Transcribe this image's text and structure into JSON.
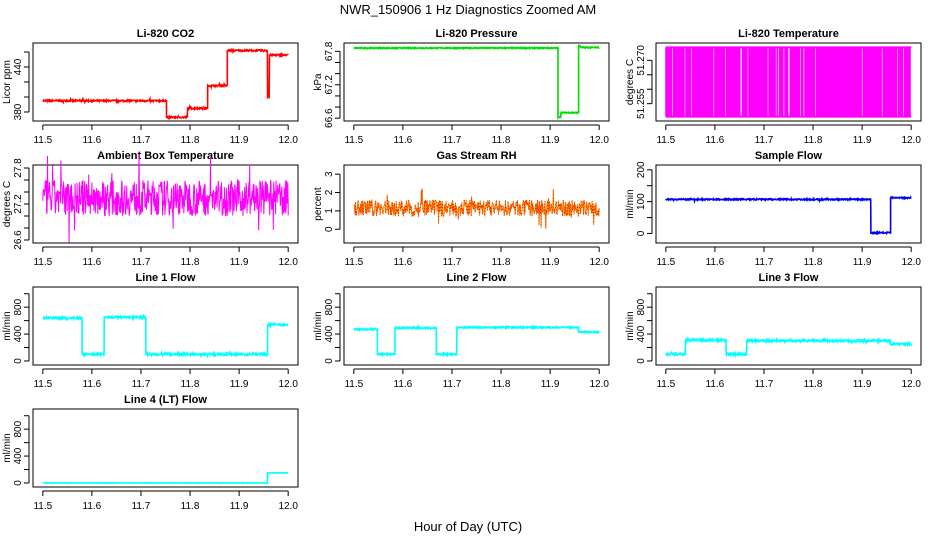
{
  "title": "NWR_150906  1 Hz Diagnostics Zoomed AM",
  "xlabel": "Hour of Day (UTC)",
  "chart_data": [
    {
      "type": "line",
      "title": "Li-820 CO2",
      "ylabel": "Licor ppm",
      "color": "#ff0000",
      "xlim": [
        11.48,
        12.02
      ],
      "ylim": [
        368,
        472
      ],
      "yticks": [
        380,
        400,
        420,
        440,
        460
      ],
      "ytick_labels": [
        "380",
        "",
        "",
        "440",
        ""
      ],
      "xticks": [
        "11.5",
        "11.6",
        "11.7",
        "11.8",
        "11.9",
        "12.0"
      ],
      "segments": [
        [
          11.5,
          11.752,
          395
        ],
        [
          11.752,
          11.795,
          373
        ],
        [
          11.795,
          11.836,
          385
        ],
        [
          11.836,
          11.876,
          415
        ],
        [
          11.876,
          11.958,
          462
        ],
        [
          11.958,
          11.962,
          400
        ],
        [
          11.962,
          12.0,
          456
        ]
      ],
      "noise": 1
    },
    {
      "type": "line",
      "title": "Li-820 Pressure",
      "ylabel": "kPa",
      "color": "#00dd00",
      "xlim": [
        11.48,
        12.02
      ],
      "ylim": [
        66.55,
        67.95
      ],
      "yticks": [
        66.6,
        66.8,
        67.0,
        67.2,
        67.4,
        67.6,
        67.8
      ],
      "ytick_labels": [
        "66.6",
        "",
        "",
        "67.2",
        "",
        "",
        "67.8"
      ],
      "xticks": [
        "11.5",
        "11.6",
        "11.7",
        "11.8",
        "11.9",
        "12.0"
      ],
      "segments": [
        [
          11.5,
          11.916,
          67.86
        ],
        [
          11.916,
          11.922,
          66.62
        ],
        [
          11.922,
          11.958,
          66.7
        ],
        [
          11.958,
          11.962,
          67.9
        ],
        [
          11.962,
          12.0,
          67.87
        ]
      ],
      "noise": 0.01
    },
    {
      "type": "oscillation",
      "title": "Li-820 Temperature",
      "ylabel": "degrees C",
      "color": "#ff00ff",
      "xlim": [
        11.48,
        12.02
      ],
      "ylim": [
        51.249,
        51.276
      ],
      "yticks": [
        51.255,
        51.26,
        51.265,
        51.27
      ],
      "ytick_labels": [
        "51.255",
        "",
        "",
        "51.270"
      ],
      "xticks": [
        "11.5",
        "11.6",
        "11.7",
        "11.8",
        "11.9",
        "12.0"
      ],
      "low": 51.2505,
      "high": 51.2745
    },
    {
      "type": "line",
      "title": "Ambient Box Temperature",
      "ylabel": "degrees C",
      "color": "#ff00ff",
      "xlim": [
        11.48,
        12.02
      ],
      "ylim": [
        26.55,
        27.85
      ],
      "yticks": [
        26.6,
        26.8,
        27.0,
        27.2,
        27.4,
        27.6,
        27.8
      ],
      "ytick_labels": [
        "26.6",
        "",
        "",
        "27.2",
        "",
        "",
        "27.8"
      ],
      "xticks": [
        "11.5",
        "11.6",
        "11.7",
        "11.8",
        "11.9",
        "12.0"
      ],
      "segments": [
        [
          11.5,
          12.0,
          27.3
        ]
      ],
      "noise": 0.3
    },
    {
      "type": "line",
      "title": "Gas Stream RH",
      "ylabel": "percent",
      "color": "#ff8c00",
      "color2": "#dd0000",
      "xlim": [
        11.48,
        12.02
      ],
      "ylim": [
        -0.75,
        3.5
      ],
      "yticks": [
        0,
        1,
        2,
        3
      ],
      "ytick_labels": [
        "0",
        "1",
        "2",
        "3"
      ],
      "xticks": [
        "11.5",
        "11.6",
        "11.7",
        "11.8",
        "11.9",
        "12.0"
      ],
      "segments": [
        [
          11.5,
          12.0,
          1.15
        ]
      ],
      "noise": 0.45
    },
    {
      "type": "line",
      "title": "Sample Flow",
      "ylabel": "ml/min",
      "color": "#0000ee",
      "xlim": [
        11.48,
        12.02
      ],
      "ylim": [
        -30,
        215
      ],
      "yticks": [
        0,
        50,
        100,
        150,
        200
      ],
      "ytick_labels": [
        "0",
        "",
        "100",
        "",
        "200"
      ],
      "xticks": [
        "11.5",
        "11.6",
        "11.7",
        "11.8",
        "11.9",
        "12.0"
      ],
      "segments": [
        [
          11.5,
          11.918,
          107
        ],
        [
          11.918,
          11.958,
          2
        ],
        [
          11.958,
          12.0,
          112
        ]
      ],
      "noise": 2
    },
    {
      "type": "line",
      "title": "Line 1 Flow",
      "ylabel": "ml/min",
      "color": "#00ffff",
      "xlim": [
        11.48,
        12.02
      ],
      "ylim": [
        -60,
        1100
      ],
      "yticks": [
        0,
        200,
        400,
        600,
        800,
        1000
      ],
      "ytick_labels": [
        "0",
        "",
        "400",
        "",
        "800",
        ""
      ],
      "xticks": [
        "11.5",
        "11.6",
        "11.7",
        "11.8",
        "11.9",
        "12.0"
      ],
      "segments": [
        [
          11.5,
          11.58,
          640
        ],
        [
          11.58,
          11.625,
          100
        ],
        [
          11.625,
          11.71,
          650
        ],
        [
          11.71,
          11.958,
          100
        ],
        [
          11.958,
          12.0,
          540
        ]
      ],
      "noise": 15
    },
    {
      "type": "line",
      "title": "Line 2 Flow",
      "ylabel": "ml/min",
      "color": "#00ffff",
      "xlim": [
        11.48,
        12.02
      ],
      "ylim": [
        -60,
        1100
      ],
      "yticks": [
        0,
        200,
        400,
        600,
        800,
        1000
      ],
      "ytick_labels": [
        "0",
        "",
        "400",
        "",
        "800",
        ""
      ],
      "xticks": [
        "11.5",
        "11.6",
        "11.7",
        "11.8",
        "11.9",
        "12.0"
      ],
      "segments": [
        [
          11.5,
          11.548,
          470
        ],
        [
          11.548,
          11.584,
          100
        ],
        [
          11.584,
          11.668,
          490
        ],
        [
          11.668,
          11.71,
          100
        ],
        [
          11.71,
          11.958,
          500
        ],
        [
          11.958,
          12.0,
          430
        ]
      ],
      "noise": 10
    },
    {
      "type": "line",
      "title": "Line 3 Flow",
      "ylabel": "ml/min",
      "color": "#00ffff",
      "xlim": [
        11.48,
        12.02
      ],
      "ylim": [
        -60,
        1100
      ],
      "yticks": [
        0,
        200,
        400,
        600,
        800,
        1000
      ],
      "ytick_labels": [
        "0",
        "",
        "400",
        "",
        "800",
        ""
      ],
      "xticks": [
        "11.5",
        "11.6",
        "11.7",
        "11.8",
        "11.9",
        "12.0"
      ],
      "segments": [
        [
          11.5,
          11.54,
          100
        ],
        [
          11.54,
          11.623,
          310
        ],
        [
          11.623,
          11.665,
          100
        ],
        [
          11.665,
          11.958,
          300
        ],
        [
          11.958,
          12.0,
          250
        ]
      ],
      "noise": 15
    },
    {
      "type": "line",
      "title": "Line 4 (LT) Flow",
      "ylabel": "ml/min",
      "color": "#00ffff",
      "xlim": [
        11.48,
        12.02
      ],
      "ylim": [
        -60,
        1100
      ],
      "yticks": [
        0,
        200,
        400,
        600,
        800,
        1000
      ],
      "ytick_labels": [
        "0",
        "",
        "400",
        "",
        "800",
        ""
      ],
      "xticks": [
        "11.5",
        "11.6",
        "11.7",
        "11.8",
        "11.9",
        "12.0"
      ],
      "segments": [
        [
          11.5,
          11.958,
          0
        ],
        [
          11.958,
          12.0,
          150
        ]
      ],
      "noise": 2
    }
  ]
}
